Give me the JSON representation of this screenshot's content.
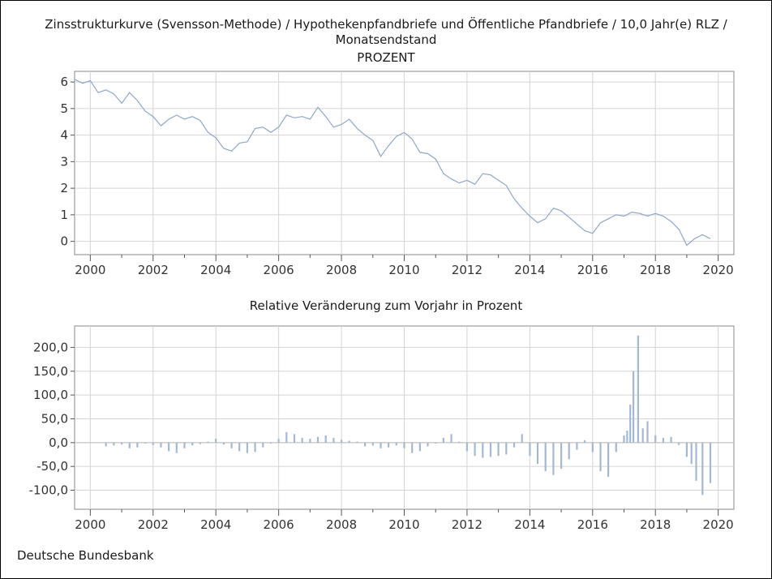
{
  "chart_title": {
    "line1": "Zinsstrukturkurve (Svensson-Methode) / Hypothekenpfandbriefe und Öffentliche Pfandbriefe / 10,0 Jahr(e) RLZ /",
    "line2": "Monatsendstand",
    "line3": "PROZENT"
  },
  "footer": "Deutsche Bundesbank",
  "colors": {
    "series": "#8ea7c8",
    "bar": "#a4b8d3",
    "grid": "#d4d4d4",
    "axis": "#555555"
  },
  "chart_data": [
    {
      "type": "line",
      "title": "",
      "xlabel": "",
      "ylabel": "",
      "xlim": [
        1999.5,
        2020.5
      ],
      "ylim": [
        -0.5,
        6.4
      ],
      "x_ticks": [
        "2000",
        "2002",
        "2004",
        "2006",
        "2008",
        "2010",
        "2012",
        "2014",
        "2016",
        "2018",
        "2020"
      ],
      "y_ticks": [
        "0",
        "1",
        "2",
        "3",
        "4",
        "5",
        "6"
      ],
      "grid": true,
      "x": [
        1999.5,
        1999.75,
        2000.0,
        2000.25,
        2000.5,
        2000.75,
        2001.0,
        2001.25,
        2001.5,
        2001.75,
        2002.0,
        2002.25,
        2002.5,
        2002.75,
        2003.0,
        2003.25,
        2003.5,
        2003.75,
        2004.0,
        2004.25,
        2004.5,
        2004.75,
        2005.0,
        2005.25,
        2005.5,
        2005.75,
        2006.0,
        2006.25,
        2006.5,
        2006.75,
        2007.0,
        2007.25,
        2007.5,
        2007.75,
        2008.0,
        2008.25,
        2008.5,
        2008.75,
        2009.0,
        2009.25,
        2009.5,
        2009.75,
        2010.0,
        2010.25,
        2010.5,
        2010.75,
        2011.0,
        2011.25,
        2011.5,
        2011.75,
        2012.0,
        2012.25,
        2012.5,
        2012.75,
        2013.0,
        2013.25,
        2013.5,
        2013.75,
        2014.0,
        2014.25,
        2014.5,
        2014.75,
        2015.0,
        2015.25,
        2015.5,
        2015.75,
        2016.0,
        2016.25,
        2016.5,
        2016.75,
        2017.0,
        2017.25,
        2017.5,
        2017.75,
        2018.0,
        2018.25,
        2018.5,
        2018.75,
        2019.0,
        2019.25,
        2019.5,
        2019.75
      ],
      "series": [
        {
          "values": [
            6.1,
            5.95,
            6.05,
            5.6,
            5.7,
            5.55,
            5.2,
            5.6,
            5.3,
            4.9,
            4.7,
            4.35,
            4.6,
            4.75,
            4.6,
            4.7,
            4.55,
            4.1,
            3.9,
            3.5,
            3.4,
            3.7,
            3.75,
            4.25,
            4.3,
            4.1,
            4.3,
            4.75,
            4.65,
            4.7,
            4.6,
            5.05,
            4.7,
            4.3,
            4.4,
            4.6,
            4.25,
            4.0,
            3.8,
            3.2,
            3.6,
            3.95,
            4.1,
            3.85,
            3.35,
            3.3,
            3.1,
            2.55,
            2.35,
            2.2,
            2.3,
            2.15,
            2.55,
            2.5,
            2.3,
            2.1,
            1.6,
            1.25,
            0.95,
            0.7,
            0.85,
            1.25,
            1.15,
            0.9,
            0.65,
            0.4,
            0.3,
            0.7,
            0.85,
            1.0,
            0.95,
            1.1,
            1.05,
            0.95,
            1.05,
            0.95,
            0.75,
            0.45,
            -0.15,
            0.1,
            0.25,
            0.1
          ]
        }
      ]
    },
    {
      "type": "bar",
      "title": "Relative Veränderung zum Vorjahr in Prozent",
      "xlabel": "",
      "ylabel": "",
      "xlim": [
        1999.5,
        2020.5
      ],
      "ylim": [
        -140,
        245
      ],
      "x_ticks": [
        "2000",
        "2002",
        "2004",
        "2006",
        "2008",
        "2010",
        "2012",
        "2014",
        "2016",
        "2018",
        "2020"
      ],
      "y_ticks": [
        "200,0",
        "150,0",
        "100,0",
        "50,0",
        "0,0",
        "-50,0",
        "-100,0"
      ],
      "grid": true,
      "x": [
        2000.5,
        2000.75,
        2001.0,
        2001.25,
        2001.5,
        2001.75,
        2002.0,
        2002.25,
        2002.5,
        2002.75,
        2003.0,
        2003.25,
        2003.5,
        2003.75,
        2004.0,
        2004.25,
        2004.5,
        2004.75,
        2005.0,
        2005.25,
        2005.5,
        2005.75,
        2006.0,
        2006.25,
        2006.5,
        2006.75,
        2007.0,
        2007.25,
        2007.5,
        2007.75,
        2008.0,
        2008.25,
        2008.5,
        2008.75,
        2009.0,
        2009.25,
        2009.5,
        2009.75,
        2010.0,
        2010.25,
        2010.5,
        2010.75,
        2011.0,
        2011.25,
        2011.5,
        2011.75,
        2012.0,
        2012.25,
        2012.5,
        2012.75,
        2013.0,
        2013.25,
        2013.5,
        2013.75,
        2014.0,
        2014.25,
        2014.5,
        2014.75,
        2015.0,
        2015.25,
        2015.5,
        2015.75,
        2016.0,
        2016.25,
        2016.5,
        2016.75,
        2017.0,
        2017.1,
        2017.2,
        2017.3,
        2017.45,
        2017.6,
        2017.75,
        2018.0,
        2018.25,
        2018.5,
        2018.75,
        2019.0,
        2019.15,
        2019.3,
        2019.5,
        2019.75
      ],
      "series": [
        {
          "values": [
            -8,
            -6,
            -4,
            -12,
            -10,
            -2,
            -5,
            -10,
            -18,
            -22,
            -12,
            -6,
            -3,
            2,
            8,
            -4,
            -12,
            -18,
            -22,
            -20,
            -10,
            -2,
            8,
            22,
            18,
            10,
            8,
            12,
            15,
            10,
            6,
            4,
            2,
            -8,
            -6,
            -12,
            -10,
            -6,
            -12,
            -22,
            -18,
            -8,
            -2,
            10,
            18,
            2,
            -18,
            -28,
            -32,
            -30,
            -28,
            -25,
            -10,
            18,
            -28,
            -45,
            -60,
            -68,
            -55,
            -35,
            -15,
            5,
            -20,
            -60,
            -72,
            -20,
            15,
            25,
            80,
            150,
            225,
            30,
            45,
            15,
            10,
            12,
            -5,
            -30,
            -45,
            -80,
            -110,
            -85
          ]
        }
      ]
    }
  ]
}
